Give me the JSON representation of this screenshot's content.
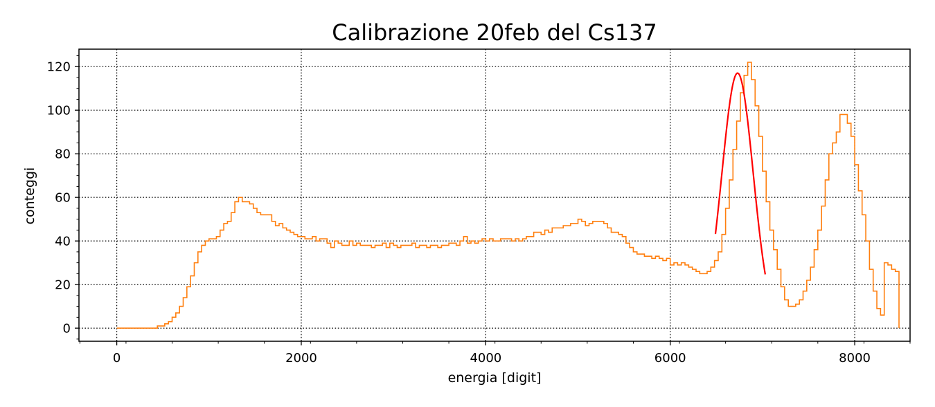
{
  "chart_data": {
    "type": "line",
    "title": "Calibrazione 20feb del Cs137",
    "xlabel": "energia [digit]",
    "ylabel": "conteggi",
    "xlim": [
      -410,
      8600
    ],
    "ylim": [
      -6,
      128
    ],
    "x_ticks": [
      0,
      2000,
      4000,
      6000,
      8000
    ],
    "x_tick_labels": [
      "0",
      "2000",
      "4000",
      "6000",
      "8000"
    ],
    "y_ticks": [
      0,
      20,
      40,
      60,
      80,
      100,
      120
    ],
    "y_tick_labels": [
      "0",
      "20",
      "40",
      "60",
      "80",
      "100",
      "120"
    ],
    "grid": true,
    "series": [
      {
        "name": "",
        "style": "step",
        "color": "#ff7f0e",
        "bin_width": 40,
        "x_start": 0,
        "values": [
          0,
          0,
          0,
          0,
          0,
          0,
          0,
          0,
          0,
          0,
          0,
          1,
          1,
          2,
          3,
          5,
          7,
          10,
          14,
          19,
          24,
          30,
          35,
          38,
          40,
          41,
          41,
          42,
          45,
          48,
          49,
          53,
          58,
          60,
          58,
          58,
          57,
          55,
          53,
          52,
          52,
          52,
          49,
          47,
          48,
          46,
          45,
          44,
          43,
          42,
          42,
          41,
          41,
          42,
          40,
          41,
          41,
          39,
          37,
          40,
          39,
          38,
          38,
          40,
          38,
          39,
          38,
          38,
          38,
          37,
          38,
          38,
          39,
          37,
          39,
          38,
          37,
          38,
          38,
          38,
          39,
          37,
          38,
          38,
          37,
          38,
          38,
          37,
          38,
          38,
          39,
          39,
          38,
          40,
          42,
          39,
          40,
          39,
          40,
          41,
          40,
          41,
          40,
          40,
          41,
          41,
          41,
          40,
          41,
          40,
          41,
          42,
          42,
          44,
          44,
          43,
          45,
          44,
          46,
          46,
          46,
          47,
          47,
          48,
          48,
          50,
          49,
          47,
          48,
          49,
          49,
          49,
          48,
          46,
          44,
          44,
          43,
          42,
          39,
          37,
          35,
          34,
          34,
          33,
          33,
          32,
          33,
          32,
          31,
          32,
          29,
          30,
          29,
          30,
          29,
          28,
          27,
          26,
          25,
          25,
          26,
          28,
          31,
          35,
          43,
          55,
          68,
          82,
          95,
          108,
          116,
          122,
          114,
          102,
          88,
          72,
          58,
          45,
          36,
          27,
          19,
          13,
          10,
          10,
          11,
          13,
          17,
          22,
          28,
          36,
          45,
          56,
          68,
          80,
          85,
          90,
          98,
          98,
          94,
          88,
          75,
          63,
          52,
          40,
          27,
          17,
          9,
          6,
          30,
          29,
          27,
          26
        ]
      },
      {
        "name": "",
        "style": "gaussian-fit",
        "color": "#ff0000",
        "x_range": [
          6490,
          7030
        ],
        "amplitude": 117,
        "mean": 6730,
        "sigma": 170
      }
    ]
  }
}
